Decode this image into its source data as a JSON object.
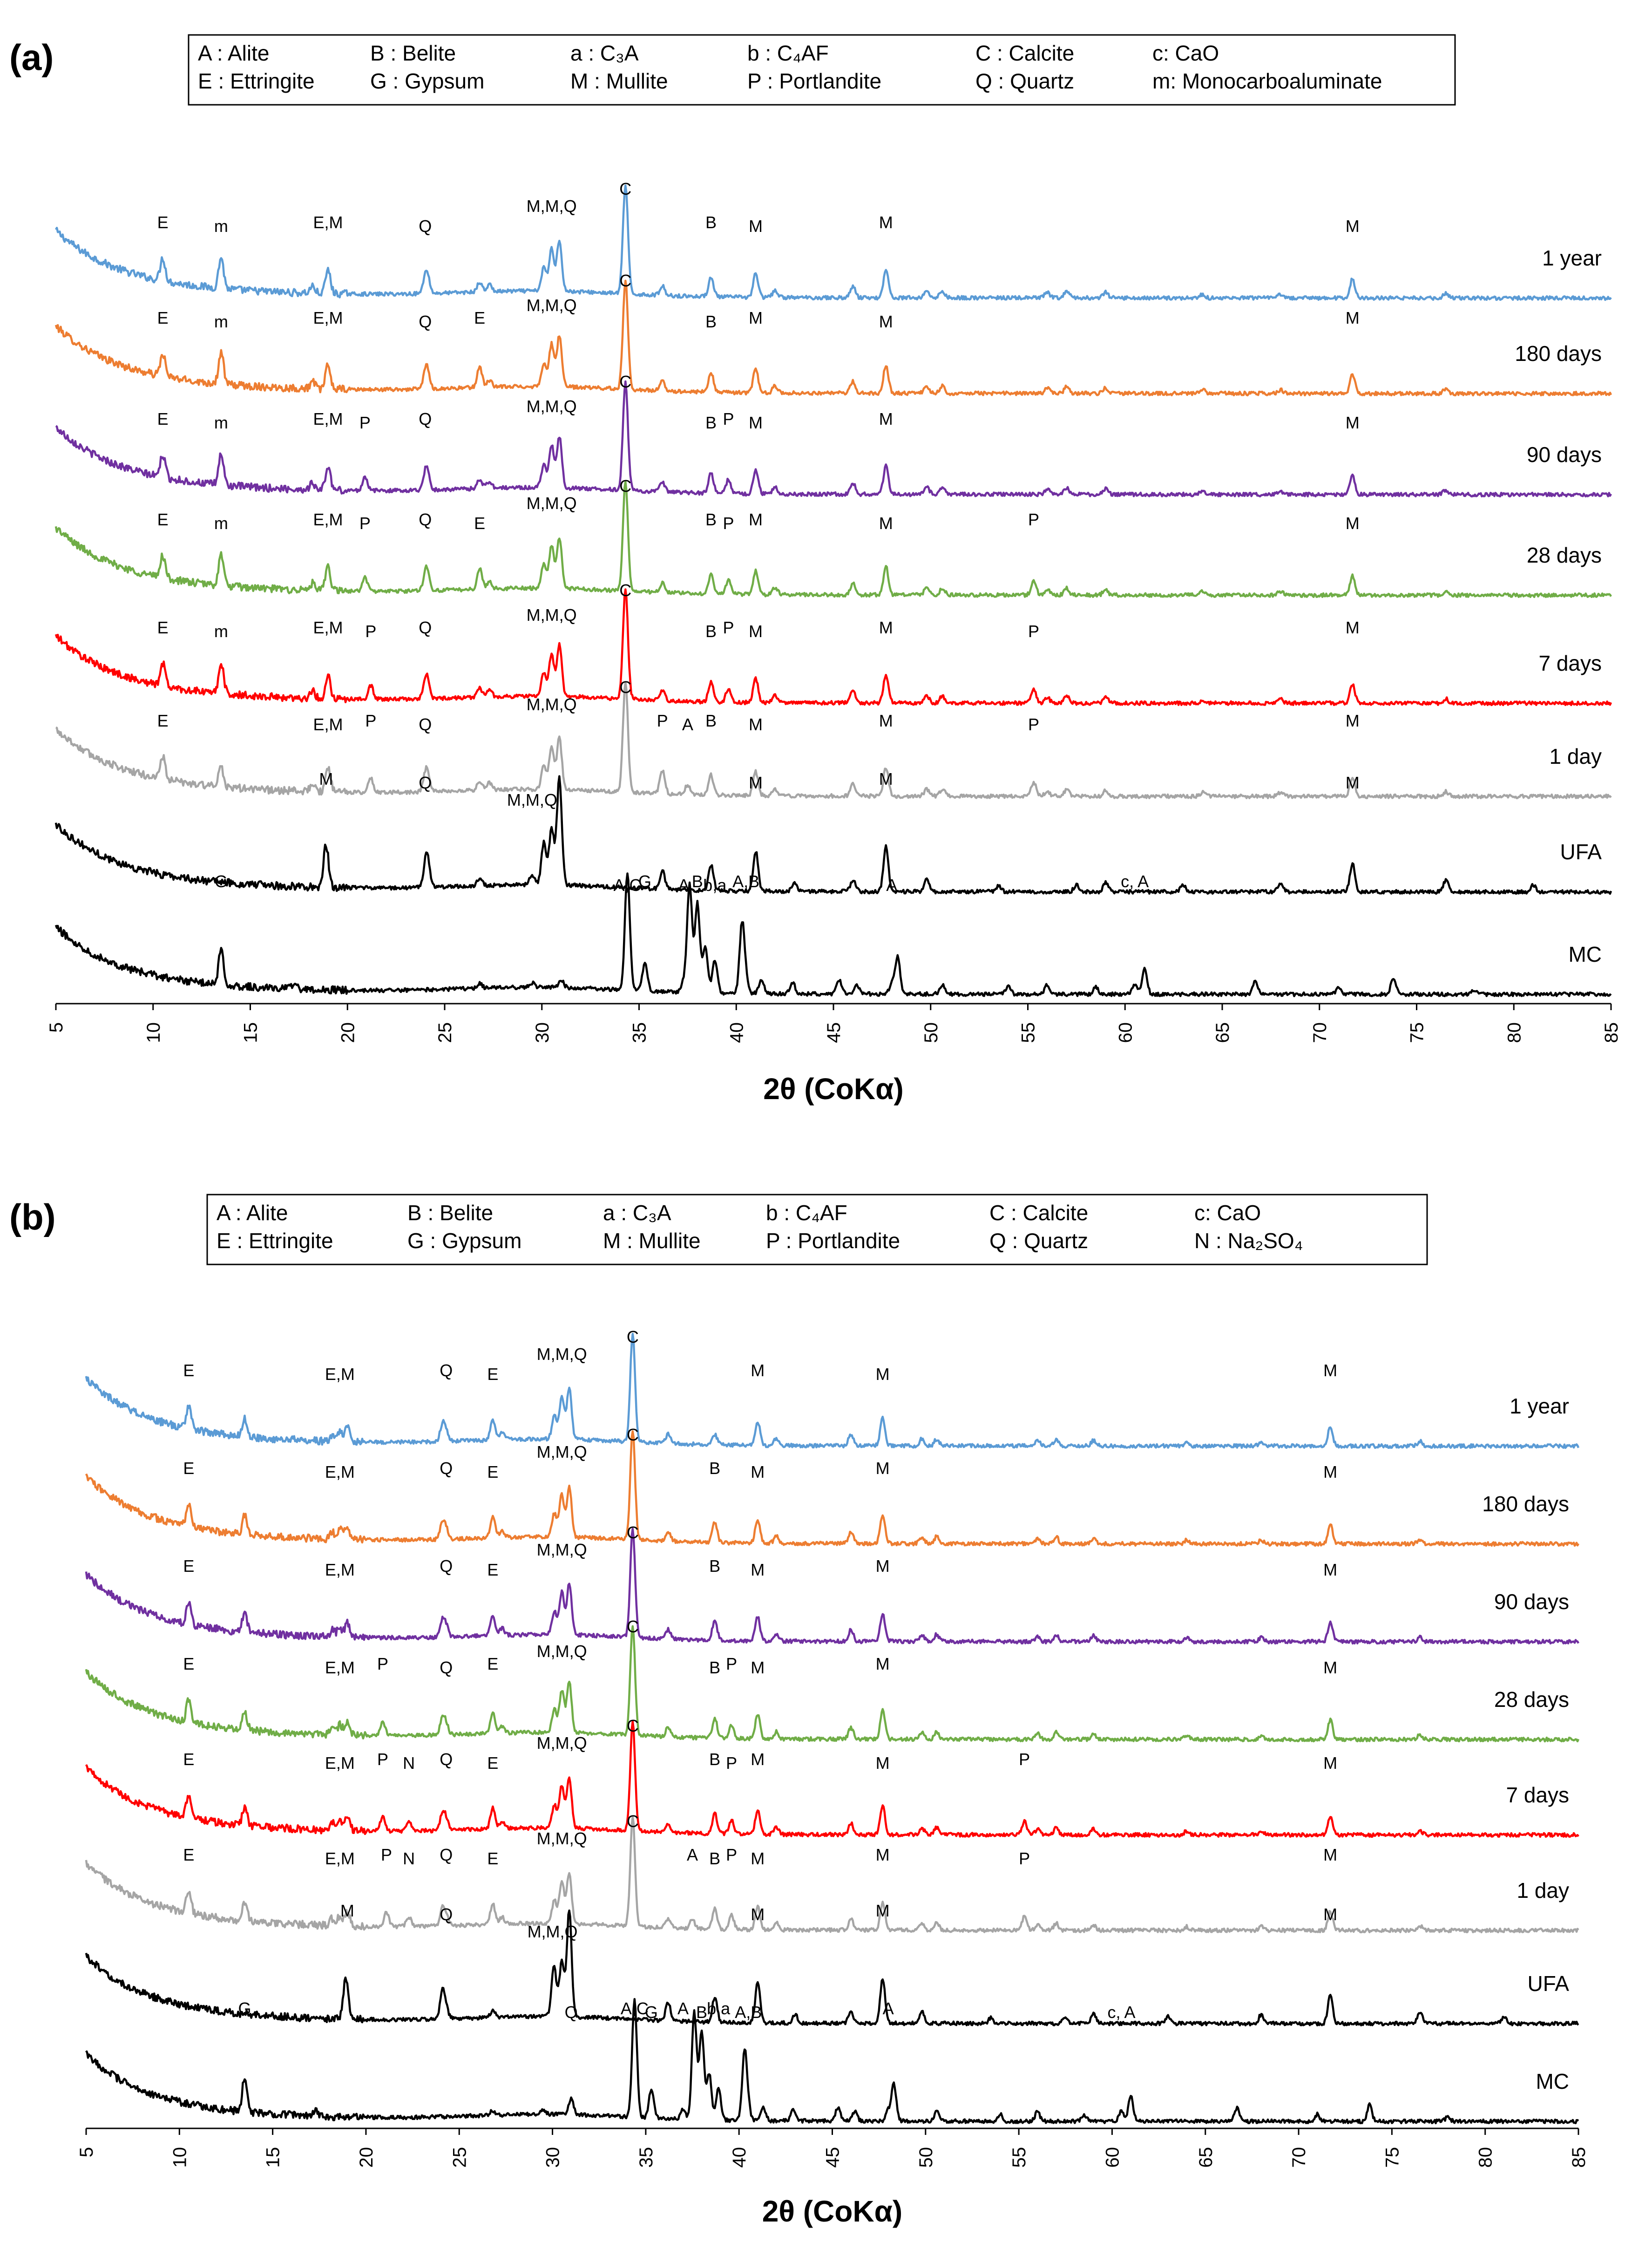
{
  "colors": {
    "1 year": "#5b9bd5",
    "180 days": "#ed7d31",
    "90 days": "#7030a0",
    "28 days": "#70ad47",
    "7 days": "#ff0000",
    "1 day": "#a5a5a5",
    "UFA": "#000000",
    "MC": "#000000"
  },
  "chart_data": [
    {
      "id": "a",
      "type": "line",
      "panel_label": "(a)",
      "xlabel": "2θ (CoKα)",
      "xlim": [
        5,
        85
      ],
      "x_ticks": [
        "5",
        "10",
        "15",
        "20",
        "25",
        "30",
        "35",
        "40",
        "45",
        "50",
        "55",
        "60",
        "65",
        "70",
        "75",
        "80",
        "85"
      ],
      "legend": [
        [
          "A : Alite",
          "B : Belite",
          "a : C₃A",
          "b : C₄AF",
          "C : Calcite",
          "c: CaO"
        ],
        [
          "E : Ettringite",
          "G : Gypsum",
          "M : Mullite",
          "P : Portlandite",
          "Q : Quartz",
          "m: Monocarboaluminate"
        ]
      ],
      "series": [
        {
          "name": "1 year",
          "annotations": [
            [
              10.5,
              "E"
            ],
            [
              13.5,
              "m"
            ],
            [
              19,
              "E,M"
            ],
            [
              24,
              "Q"
            ],
            [
              30.5,
              "M,M,Q"
            ],
            [
              34.3,
              "C"
            ],
            [
              38.7,
              "B"
            ],
            [
              41,
              "M"
            ],
            [
              47.7,
              "M"
            ],
            [
              71.7,
              "M"
            ]
          ]
        },
        {
          "name": "180 days",
          "annotations": [
            [
              10.5,
              "E"
            ],
            [
              13.5,
              "m"
            ],
            [
              19,
              "E,M"
            ],
            [
              24,
              "Q"
            ],
            [
              26.8,
              "E"
            ],
            [
              30.5,
              "M,M,Q"
            ],
            [
              34.3,
              "C"
            ],
            [
              38.7,
              "B"
            ],
            [
              41,
              "M"
            ],
            [
              47.7,
              "M"
            ],
            [
              71.7,
              "M"
            ]
          ]
        },
        {
          "name": "90 days",
          "annotations": [
            [
              10.5,
              "E"
            ],
            [
              13.5,
              "m"
            ],
            [
              19,
              "E,M"
            ],
            [
              20.9,
              "P"
            ],
            [
              24,
              "Q"
            ],
            [
              30.5,
              "M,M,Q"
            ],
            [
              34.3,
              "C"
            ],
            [
              38.7,
              "B"
            ],
            [
              39.6,
              "P"
            ],
            [
              41,
              "M"
            ],
            [
              47.7,
              "M"
            ],
            [
              71.7,
              "M"
            ]
          ]
        },
        {
          "name": "28 days",
          "annotations": [
            [
              10.5,
              "E"
            ],
            [
              13.5,
              "m"
            ],
            [
              19,
              "E,M"
            ],
            [
              20.9,
              "P"
            ],
            [
              24,
              "Q"
            ],
            [
              26.8,
              "E"
            ],
            [
              30.5,
              "M,M,Q"
            ],
            [
              34.3,
              "C"
            ],
            [
              38.7,
              "B"
            ],
            [
              39.6,
              "P"
            ],
            [
              41,
              "M"
            ],
            [
              47.7,
              "M"
            ],
            [
              55.3,
              "P"
            ],
            [
              71.7,
              "M"
            ]
          ]
        },
        {
          "name": "7 days",
          "annotations": [
            [
              10.5,
              "E"
            ],
            [
              13.5,
              "m"
            ],
            [
              19,
              "E,M"
            ],
            [
              21.2,
              "P"
            ],
            [
              24,
              "Q"
            ],
            [
              30.5,
              "M,M,Q"
            ],
            [
              34.3,
              "C"
            ],
            [
              38.7,
              "B"
            ],
            [
              39.6,
              "P"
            ],
            [
              41,
              "M"
            ],
            [
              47.7,
              "M"
            ],
            [
              55.3,
              "P"
            ],
            [
              71.7,
              "M"
            ]
          ]
        },
        {
          "name": "1 day",
          "annotations": [
            [
              10.5,
              "E"
            ],
            [
              19,
              "E,M"
            ],
            [
              21.2,
              "P"
            ],
            [
              24,
              "Q"
            ],
            [
              30.5,
              "M,M,Q"
            ],
            [
              34.3,
              "C"
            ],
            [
              36.2,
              "P"
            ],
            [
              37.5,
              "A"
            ],
            [
              38.7,
              "B"
            ],
            [
              41,
              "M"
            ],
            [
              47.7,
              "M"
            ],
            [
              55.3,
              "P"
            ],
            [
              71.7,
              "M"
            ]
          ]
        },
        {
          "name": "UFA",
          "annotations": [
            [
              18.9,
              "M"
            ],
            [
              24,
              "Q"
            ],
            [
              29.5,
              "M,M,Q"
            ],
            [
              41,
              "M"
            ],
            [
              47.7,
              "M"
            ],
            [
              71.7,
              "M"
            ]
          ]
        },
        {
          "name": "MC",
          "annotations": [
            [
              13.5,
              "G"
            ],
            [
              34.4,
              "A,C"
            ],
            [
              35.3,
              "G"
            ],
            [
              37.3,
              "A"
            ],
            [
              38,
              "B"
            ],
            [
              38.9,
              "b,a"
            ],
            [
              40.5,
              "A,B"
            ],
            [
              48,
              "A"
            ],
            [
              60.5,
              "c, A"
            ]
          ]
        }
      ]
    },
    {
      "id": "b",
      "type": "line",
      "panel_label": "(b)",
      "xlabel": "2θ (CoKα)",
      "xlim": [
        5,
        85
      ],
      "x_ticks": [
        "5",
        "10",
        "15",
        "20",
        "25",
        "30",
        "35",
        "40",
        "45",
        "50",
        "55",
        "60",
        "65",
        "70",
        "75",
        "80",
        "85"
      ],
      "legend": [
        [
          "A : Alite",
          "B : Belite",
          "a : C₃A",
          "b : C₄AF",
          "C : Calcite",
          "c: CaO"
        ],
        [
          "E : Ettringite",
          "G : Gypsum",
          "M : Mullite",
          "P : Portlandite",
          "Q : Quartz",
          "N : Na₂SO₄"
        ]
      ],
      "series": [
        {
          "name": "1 year",
          "annotations": [
            [
              10.5,
              "E"
            ],
            [
              18.6,
              "E,M"
            ],
            [
              24.3,
              "Q"
            ],
            [
              26.8,
              "E"
            ],
            [
              30.5,
              "M,M,Q"
            ],
            [
              34.3,
              "C"
            ],
            [
              41,
              "M"
            ],
            [
              47.7,
              "M"
            ],
            [
              71.7,
              "M"
            ]
          ]
        },
        {
          "name": "180 days",
          "annotations": [
            [
              10.5,
              "E"
            ],
            [
              18.6,
              "E,M"
            ],
            [
              24.3,
              "Q"
            ],
            [
              26.8,
              "E"
            ],
            [
              30.5,
              "M,M,Q"
            ],
            [
              34.3,
              "C"
            ],
            [
              38.7,
              "B"
            ],
            [
              41,
              "M"
            ],
            [
              47.7,
              "M"
            ],
            [
              71.7,
              "M"
            ]
          ]
        },
        {
          "name": "90 days",
          "annotations": [
            [
              10.5,
              "E"
            ],
            [
              18.6,
              "E,M"
            ],
            [
              24.3,
              "Q"
            ],
            [
              26.8,
              "E"
            ],
            [
              30.5,
              "M,M,Q"
            ],
            [
              34.3,
              "C"
            ],
            [
              38.7,
              "B"
            ],
            [
              41,
              "M"
            ],
            [
              47.7,
              "M"
            ],
            [
              71.7,
              "M"
            ]
          ]
        },
        {
          "name": "28 days",
          "annotations": [
            [
              10.5,
              "E"
            ],
            [
              18.6,
              "E,M"
            ],
            [
              20.9,
              "P"
            ],
            [
              24.3,
              "Q"
            ],
            [
              26.8,
              "E"
            ],
            [
              30.5,
              "M,M,Q"
            ],
            [
              34.3,
              "C"
            ],
            [
              38.7,
              "B"
            ],
            [
              39.6,
              "P"
            ],
            [
              41,
              "M"
            ],
            [
              47.7,
              "M"
            ],
            [
              71.7,
              "M"
            ]
          ]
        },
        {
          "name": "7 days",
          "annotations": [
            [
              10.5,
              "E"
            ],
            [
              18.6,
              "E,M"
            ],
            [
              20.9,
              "P"
            ],
            [
              22.3,
              "N"
            ],
            [
              24.3,
              "Q"
            ],
            [
              26.8,
              "E"
            ],
            [
              30.5,
              "M,M,Q"
            ],
            [
              34.3,
              "C"
            ],
            [
              38.7,
              "B"
            ],
            [
              39.6,
              "P"
            ],
            [
              41,
              "M"
            ],
            [
              47.7,
              "M"
            ],
            [
              55.3,
              "P"
            ],
            [
              71.7,
              "M"
            ]
          ]
        },
        {
          "name": "1 day",
          "annotations": [
            [
              10.5,
              "E"
            ],
            [
              18.6,
              "E,M"
            ],
            [
              21.1,
              "P"
            ],
            [
              22.3,
              "N"
            ],
            [
              24.3,
              "Q"
            ],
            [
              26.8,
              "E"
            ],
            [
              30.5,
              "M,M,Q"
            ],
            [
              34.3,
              "C"
            ],
            [
              37.5,
              "A"
            ],
            [
              38.7,
              "B"
            ],
            [
              39.6,
              "P"
            ],
            [
              41,
              "M"
            ],
            [
              47.7,
              "M"
            ],
            [
              55.3,
              "P"
            ],
            [
              71.7,
              "M"
            ]
          ]
        },
        {
          "name": "UFA",
          "annotations": [
            [
              19,
              "M"
            ],
            [
              24.3,
              "Q"
            ],
            [
              30,
              "M,M,Q"
            ],
            [
              41,
              "M"
            ],
            [
              47.7,
              "M"
            ],
            [
              71.7,
              "M"
            ]
          ]
        },
        {
          "name": "MC",
          "annotations": [
            [
              13.5,
              "G"
            ],
            [
              31,
              "Q"
            ],
            [
              34.4,
              "A,C"
            ],
            [
              35.3,
              "G"
            ],
            [
              37,
              "A"
            ],
            [
              38,
              "B"
            ],
            [
              38.9,
              "b,a"
            ],
            [
              40.5,
              "A,B"
            ],
            [
              48,
              "A"
            ],
            [
              60.5,
              "c, A"
            ]
          ]
        }
      ]
    }
  ]
}
